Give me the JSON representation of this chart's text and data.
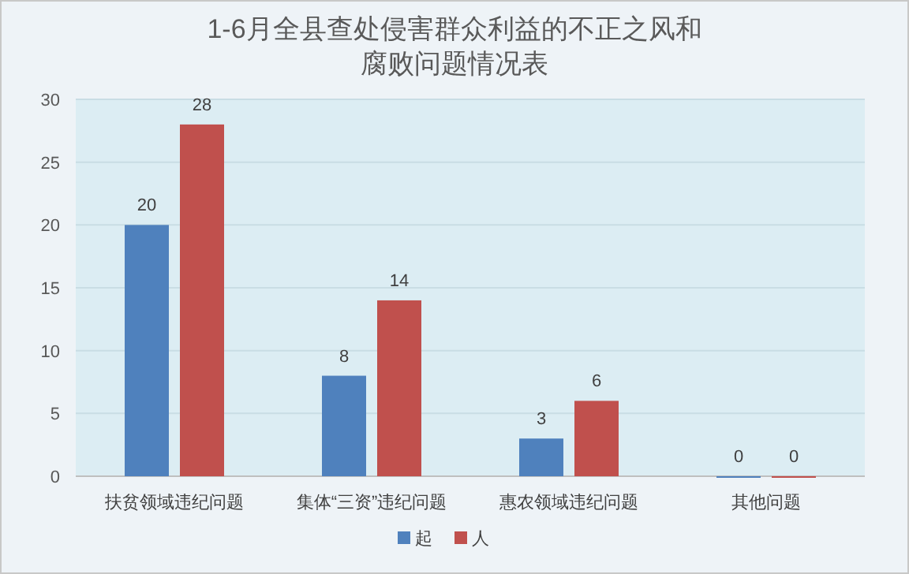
{
  "chart_data": {
    "type": "bar",
    "title": "1-6月全县查处侵害群众利益的不正之风和腐败问题情况表",
    "categories": [
      "扶贫领域违纪问题",
      "集体“三资”违纪问题",
      "惠农领域违纪问题",
      "其他问题"
    ],
    "series": [
      {
        "name": "起",
        "color": "#4f81bd",
        "values": [
          20,
          8,
          3,
          0
        ]
      },
      {
        "name": "人",
        "color": "#c0504d",
        "values": [
          28,
          14,
          6,
          0
        ]
      }
    ],
    "ylim": [
      0,
      30
    ],
    "yticks": [
      0,
      5,
      10,
      15,
      20,
      25,
      30
    ],
    "grid": "y",
    "legend": "bottom",
    "data_labels": true
  }
}
